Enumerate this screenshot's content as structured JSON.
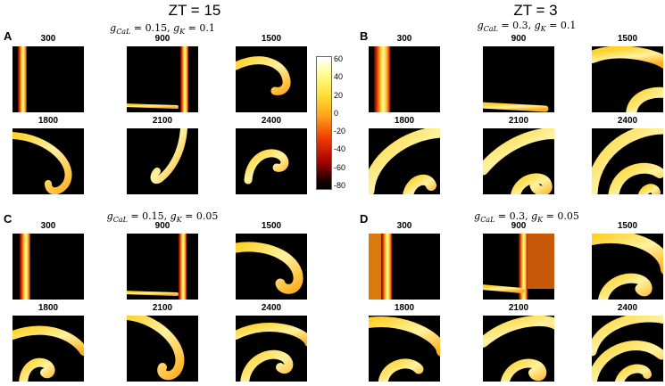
{
  "titles": {
    "left": "ZT = 15",
    "right": "ZT = 3"
  },
  "panels": [
    {
      "letter": "A",
      "param": {
        "g1": "CaL",
        "v1": "0.15",
        "g2": "K",
        "v2": "0.1"
      },
      "times": [
        "300",
        "900",
        "1500",
        "1800",
        "2100",
        "2400"
      ]
    },
    {
      "letter": "B",
      "param": {
        "g1": "CaL",
        "v1": "0.3",
        "g2": "K",
        "v2": "0.1"
      },
      "times": [
        "300",
        "900",
        "1500",
        "1800",
        "2100",
        "2400"
      ]
    },
    {
      "letter": "C",
      "param": {
        "g1": "CaL",
        "v1": "0.15",
        "g2": "K",
        "v2": "0.05"
      },
      "times": [
        "300",
        "900",
        "1500",
        "1800",
        "2100",
        "2400"
      ]
    },
    {
      "letter": "D",
      "param": {
        "g1": "CaL",
        "v1": "0.3",
        "g2": "K",
        "v2": "0.05"
      },
      "times": [
        "300",
        "900",
        "1500",
        "1800",
        "2100",
        "2400"
      ]
    }
  ],
  "colorbar": {
    "ticks": [
      "60",
      "40",
      "20",
      "0",
      "-20",
      "-40",
      "-60",
      "-80"
    ],
    "min": -80,
    "max": 60
  },
  "colors": {
    "hot": "#ffe23a",
    "core": "#fffab0",
    "edge": "#e63a00",
    "background": "#000000"
  }
}
